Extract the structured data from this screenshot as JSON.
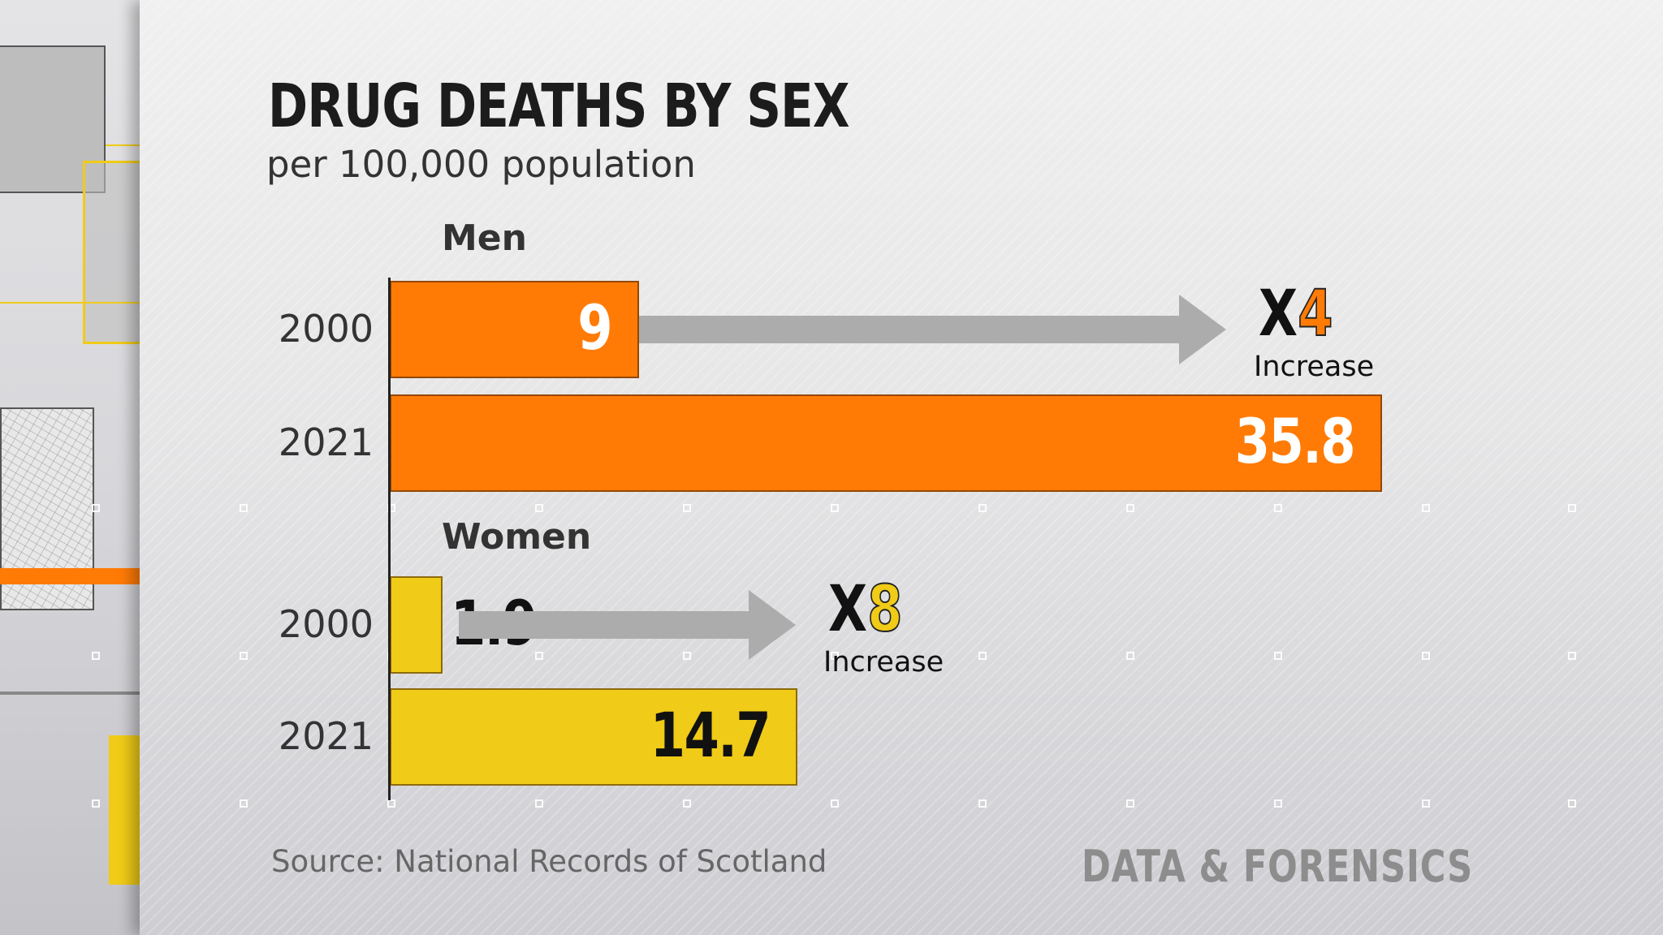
{
  "title": "DRUG DEATHS BY SEX",
  "subtitle": "per 100,000 population",
  "source": "Source: National Records of Scotland",
  "brand": "DATA & FORENSICS",
  "colors": {
    "men": "#ff7b06",
    "women": "#f0cb17",
    "arrow": "#acacac",
    "men_multiplier": "#ff7b06",
    "women_multiplier": "#f0cb17"
  },
  "chart_data": {
    "type": "bar",
    "orientation": "horizontal",
    "title": "DRUG DEATHS BY SEX",
    "subtitle": "per 100,000 population",
    "groups": [
      {
        "name": "Men",
        "bars": [
          {
            "year": "2000",
            "value": 9,
            "label": "9"
          },
          {
            "year": "2021",
            "value": 35.8,
            "label": "35.8"
          }
        ],
        "annotation": {
          "prefix": "X",
          "multiplier": "4",
          "text": "Increase"
        }
      },
      {
        "name": "Women",
        "bars": [
          {
            "year": "2000",
            "value": 1.9,
            "label": "1.9"
          },
          {
            "year": "2021",
            "value": 14.7,
            "label": "14.7"
          }
        ],
        "annotation": {
          "prefix": "X",
          "multiplier": "8",
          "text": "Increase"
        }
      }
    ],
    "xlim": [
      0,
      35.8
    ],
    "grid": false,
    "legend": "none"
  }
}
